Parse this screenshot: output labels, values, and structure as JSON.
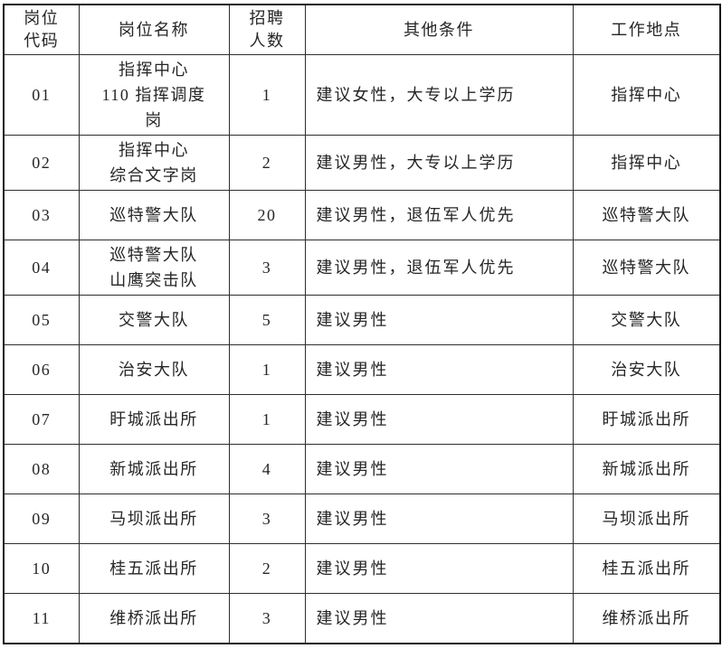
{
  "page": {
    "background_color": "#ffffff",
    "border_color": "#2e2e2e",
    "outer_border_color": "#161616",
    "text_color": "#262626"
  },
  "table": {
    "headers": [
      "岗位\n代码",
      "岗位名称",
      "招聘\n人数",
      "其他条件",
      "工作地点"
    ],
    "rows": [
      {
        "code": "01",
        "name": "指挥中心\n110 指挥调度\n岗",
        "count": "1",
        "condition": "建议女性，大专以上学历",
        "location": "指挥中心"
      },
      {
        "code": "02",
        "name": "指挥中心\n综合文字岗",
        "count": "2",
        "condition": "建议男性，大专以上学历",
        "location": "指挥中心"
      },
      {
        "code": "03",
        "name": "巡特警大队",
        "count": "20",
        "condition": "建议男性，退伍军人优先",
        "location": "巡特警大队"
      },
      {
        "code": "04",
        "name": "巡特警大队\n山鹰突击队",
        "count": "3",
        "condition": "建议男性，退伍军人优先",
        "location": "巡特警大队"
      },
      {
        "code": "05",
        "name": "交警大队",
        "count": "5",
        "condition": "建议男性",
        "location": "交警大队"
      },
      {
        "code": "06",
        "name": "治安大队",
        "count": "1",
        "condition": "建议男性",
        "location": "治安大队"
      },
      {
        "code": "07",
        "name": "盱城派出所",
        "count": "1",
        "condition": "建议男性",
        "location": "盱城派出所"
      },
      {
        "code": "08",
        "name": "新城派出所",
        "count": "4",
        "condition": "建议男性",
        "location": "新城派出所"
      },
      {
        "code": "09",
        "name": "马坝派出所",
        "count": "3",
        "condition": "建议男性",
        "location": "马坝派出所"
      },
      {
        "code": "10",
        "name": "桂五派出所",
        "count": "2",
        "condition": "建议男性",
        "location": "桂五派出所"
      },
      {
        "code": "11",
        "name": "维桥派出所",
        "count": "3",
        "condition": "建议男性",
        "location": "维桥派出所"
      }
    ]
  }
}
